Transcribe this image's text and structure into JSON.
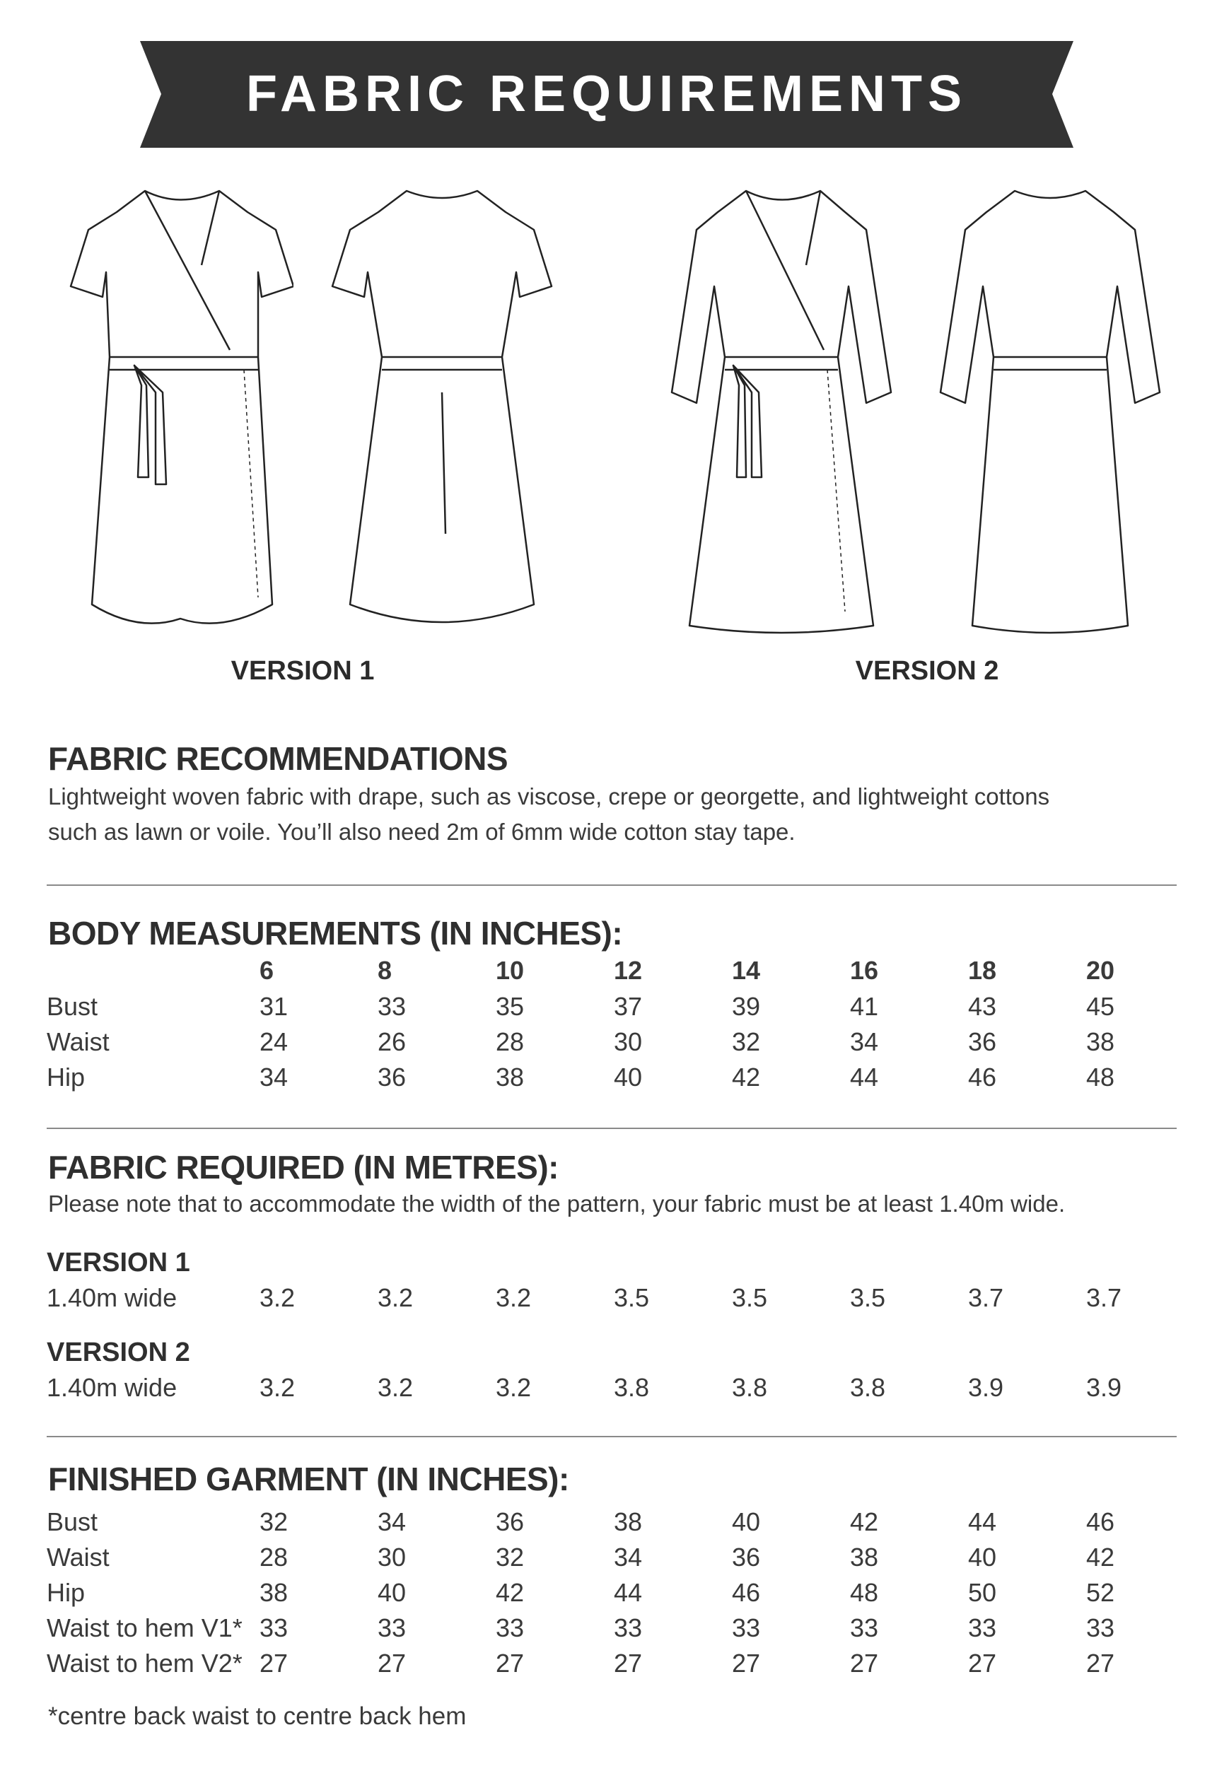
{
  "banner": {
    "title": "FABRIC REQUIREMENTS",
    "color": "#333333"
  },
  "illustrations": {
    "version1_label": "VERSION 1",
    "version2_label": "VERSION 2"
  },
  "recommendations": {
    "heading": "FABRIC RECOMMENDATIONS",
    "line1": "Lightweight woven fabric with drape, such as viscose, crepe or georgette, and lightweight cottons",
    "line2": "such as lawn or voile. You’ll also need 2m of 6mm wide cotton stay tape."
  },
  "body_measurements": {
    "heading": "BODY MEASUREMENTS (IN INCHES):",
    "sizes": [
      "6",
      "8",
      "10",
      "12",
      "14",
      "16",
      "18",
      "20"
    ],
    "rows": [
      {
        "label": "Bust",
        "values": [
          "31",
          "33",
          "35",
          "37",
          "39",
          "41",
          "43",
          "45"
        ]
      },
      {
        "label": "Waist",
        "values": [
          "24",
          "26",
          "28",
          "30",
          "32",
          "34",
          "36",
          "38"
        ]
      },
      {
        "label": "Hip",
        "values": [
          "34",
          "36",
          "38",
          "40",
          "42",
          "44",
          "46",
          "48"
        ]
      }
    ]
  },
  "fabric_required": {
    "heading": "FABRIC REQUIRED (IN METRES):",
    "note": "Please note that to accommodate the width of the pattern, your fabric must be at least 1.40m wide.",
    "versions": [
      {
        "label": "VERSION 1",
        "row_label": "1.40m wide",
        "values": [
          "3.2",
          "3.2",
          "3.2",
          "3.5",
          "3.5",
          "3.5",
          "3.7",
          "3.7"
        ]
      },
      {
        "label": "VERSION 2",
        "row_label": "1.40m wide",
        "values": [
          "3.2",
          "3.2",
          "3.2",
          "3.8",
          "3.8",
          "3.8",
          "3.9",
          "3.9"
        ]
      }
    ]
  },
  "finished_garment": {
    "heading": "FINISHED GARMENT (IN INCHES):",
    "rows": [
      {
        "label": "Bust",
        "values": [
          "32",
          "34",
          "36",
          "38",
          "40",
          "42",
          "44",
          "46"
        ]
      },
      {
        "label": "Waist",
        "values": [
          "28",
          "30",
          "32",
          "34",
          "36",
          "38",
          "40",
          "42"
        ]
      },
      {
        "label": "Hip",
        "values": [
          "38",
          "40",
          "42",
          "44",
          "46",
          "48",
          "50",
          "52"
        ]
      },
      {
        "label": "Waist to hem V1*",
        "values": [
          "33",
          "33",
          "33",
          "33",
          "33",
          "33",
          "33",
          "33"
        ]
      },
      {
        "label": "Waist to hem V2*",
        "values": [
          "27",
          "27",
          "27",
          "27",
          "27",
          "27",
          "27",
          "27"
        ]
      }
    ],
    "footnote": "*centre back waist to centre back hem"
  }
}
